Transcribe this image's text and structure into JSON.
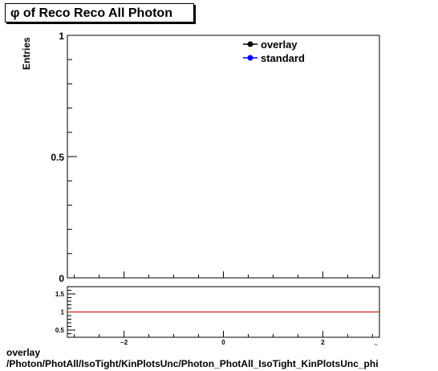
{
  "title": "φ of Reco Reco All Photon",
  "footer": {
    "line1": "overlay",
    "line2": "/Photon/PhotAll/IsoTight/KinPlotsUnc/Photon_PhotAll_IsoTight_KinPlotsUnc_phi"
  },
  "chart_data": [
    {
      "type": "line",
      "title": "φ of Reco Reco All Photon",
      "xlabel": "",
      "ylabel": "Entries",
      "xlim": [
        -3.14,
        3.14
      ],
      "ylim": [
        0,
        1
      ],
      "y_ticks": [
        "0",
        "0.5",
        "1"
      ],
      "legend_placement": "top-right",
      "series": [
        {
          "name": "overlay",
          "color": "#000000",
          "values": []
        },
        {
          "name": "standard",
          "color": "#0000ff",
          "values": []
        }
      ]
    },
    {
      "type": "line",
      "xlabel": "",
      "ylabel": "",
      "xlim": [
        -3.14,
        3.14
      ],
      "ylim": [
        0.3,
        1.7
      ],
      "x_ticks": [
        -2,
        0,
        2
      ],
      "y_ticks": [
        0.5,
        1,
        1.5
      ],
      "x_tick_labels": [
        "−2",
        "0",
        "2"
      ],
      "y_tick_labels": [
        "0.5",
        "1",
        "1.5"
      ],
      "reference_line": {
        "y": 1,
        "color": "#cc0000"
      }
    }
  ]
}
